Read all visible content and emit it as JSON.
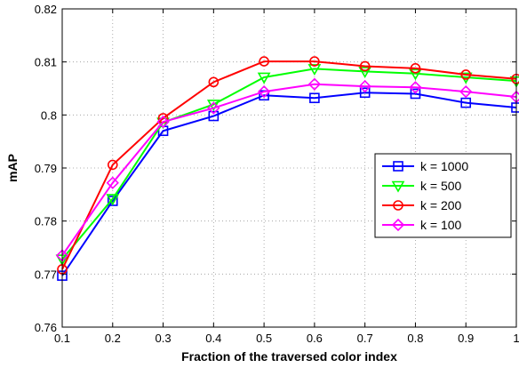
{
  "chart_data": {
    "type": "line",
    "title": "",
    "xlabel": "Fraction of the traversed color index",
    "ylabel": "mAP",
    "xlim": [
      0.1,
      1
    ],
    "ylim": [
      0.76,
      0.82
    ],
    "grid": true,
    "legend_position": "right",
    "x": [
      0.1,
      0.2,
      0.3,
      0.4,
      0.5,
      0.6,
      0.7,
      0.8,
      0.9,
      1.0
    ],
    "x_ticks": [
      "0.1",
      "0.2",
      "0.3",
      "0.4",
      "0.5",
      "0.6",
      "0.7",
      "0.8",
      "0.9",
      "1"
    ],
    "y_ticks": [
      "0.76",
      "0.77",
      "0.78",
      "0.79",
      "0.8",
      "0.81",
      "0.82"
    ],
    "series": [
      {
        "name": "k = 1000",
        "color": "#0000ff",
        "marker": "square",
        "values": [
          0.7697,
          0.7838,
          0.797,
          0.7998,
          0.8037,
          0.8032,
          0.8042,
          0.804,
          0.8023,
          0.8014
        ]
      },
      {
        "name": "k = 500",
        "color": "#00ff00",
        "marker": "triangle-down",
        "values": [
          0.7728,
          0.7842,
          0.7986,
          0.802,
          0.8071,
          0.8087,
          0.8082,
          0.8078,
          0.8071,
          0.8064
        ]
      },
      {
        "name": "k = 200",
        "color": "#ff0000",
        "marker": "circle",
        "values": [
          0.7709,
          0.7906,
          0.7994,
          0.8062,
          0.8101,
          0.8101,
          0.8092,
          0.8088,
          0.8076,
          0.8068
        ]
      },
      {
        "name": "k = 100",
        "color": "#ff00ff",
        "marker": "diamond",
        "values": [
          0.7735,
          0.7872,
          0.7987,
          0.8013,
          0.8044,
          0.8058,
          0.8054,
          0.8052,
          0.8044,
          0.8034
        ]
      }
    ]
  }
}
